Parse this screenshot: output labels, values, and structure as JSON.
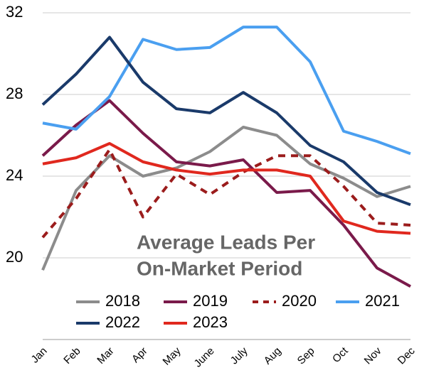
{
  "chart_data": {
    "type": "line",
    "title": [
      "Average Leads Per",
      "On-Market Period"
    ],
    "categories": [
      "Jan",
      "Feb",
      "Mar",
      "Apr",
      "May",
      "June",
      "July",
      "Aug",
      "Sep",
      "Oct",
      "Nov",
      "Dec"
    ],
    "series": [
      {
        "name": "2018",
        "color": "#8c8c8c",
        "dashed": false,
        "values": [
          19.4,
          23.3,
          25.0,
          24.0,
          24.4,
          25.2,
          26.4,
          26.0,
          24.6,
          23.9,
          23.0,
          23.5
        ]
      },
      {
        "name": "2019",
        "color": "#7a1a4a",
        "dashed": false,
        "values": [
          25.0,
          26.5,
          27.7,
          26.1,
          24.7,
          24.5,
          24.8,
          23.2,
          23.3,
          21.6,
          19.5,
          18.6
        ]
      },
      {
        "name": "2020",
        "color": "#9b1c1c",
        "dashed": true,
        "values": [
          21.0,
          22.9,
          25.3,
          22.0,
          24.1,
          23.1,
          24.2,
          25.0,
          25.0,
          23.5,
          21.7,
          21.6
        ]
      },
      {
        "name": "2021",
        "color": "#4a9ff0",
        "dashed": false,
        "values": [
          26.6,
          26.3,
          27.9,
          30.7,
          30.2,
          30.3,
          31.3,
          31.3,
          29.6,
          26.2,
          25.7,
          25.1
        ]
      },
      {
        "name": "2022",
        "color": "#1a3a6a",
        "dashed": false,
        "values": [
          27.5,
          29.0,
          30.8,
          28.6,
          27.3,
          27.1,
          28.1,
          27.1,
          25.5,
          24.7,
          23.2,
          22.6
        ]
      },
      {
        "name": "2023",
        "color": "#e0281e",
        "dashed": false,
        "values": [
          24.6,
          24.9,
          25.6,
          24.7,
          24.3,
          24.1,
          24.3,
          24.3,
          24.0,
          21.8,
          21.3,
          21.2
        ]
      }
    ],
    "ylim": [
      16,
      32
    ],
    "yticks": [
      20,
      24,
      28,
      32
    ],
    "grid": true
  }
}
